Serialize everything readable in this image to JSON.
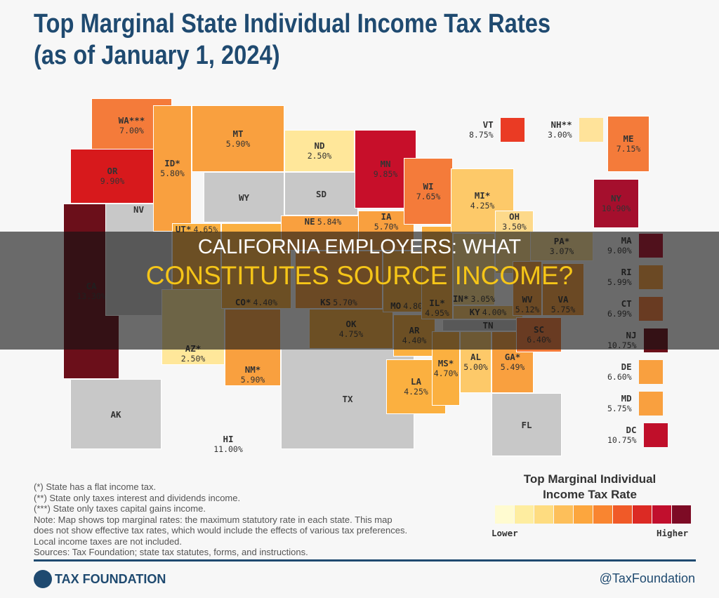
{
  "title": {
    "line1": "Top Marginal State Individual Income Tax Rates",
    "line2": "(as of January 1, 2024)"
  },
  "states": [
    {
      "abbr": "WA***",
      "rate": "7.00%",
      "color": "#f47b3a"
    },
    {
      "abbr": "OR",
      "rate": "9.90%",
      "color": "#d7191c"
    },
    {
      "abbr": "CA",
      "rate": "13.30%",
      "color": "#6b0f1a"
    },
    {
      "abbr": "NV",
      "rate": "",
      "color": "#c8c8c8"
    },
    {
      "abbr": "ID*",
      "rate": "5.80%",
      "color": "#f9a03f"
    },
    {
      "abbr": "MT",
      "rate": "5.90%",
      "color": "#f9a03f"
    },
    {
      "abbr": "WY",
      "rate": "",
      "color": "#c8c8c8"
    },
    {
      "abbr": "UT*",
      "rate": "4.65%",
      "color": "#fbb040"
    },
    {
      "abbr": "AZ*",
      "rate": "2.50%",
      "color": "#ffe79a"
    },
    {
      "abbr": "CO*",
      "rate": "4.40%",
      "color": "#fbb040"
    },
    {
      "abbr": "NM*",
      "rate": "5.90%",
      "color": "#f9a03f"
    },
    {
      "abbr": "ND",
      "rate": "2.50%",
      "color": "#ffe79a"
    },
    {
      "abbr": "SD",
      "rate": "",
      "color": "#c8c8c8"
    },
    {
      "abbr": "NE",
      "rate": "5.84%",
      "color": "#f9a03f"
    },
    {
      "abbr": "KS",
      "rate": "5.70%",
      "color": "#f9a03f"
    },
    {
      "abbr": "OK",
      "rate": "4.75%",
      "color": "#fbb040"
    },
    {
      "abbr": "TX",
      "rate": "",
      "color": "#c8c8c8"
    },
    {
      "abbr": "MN",
      "rate": "9.85%",
      "color": "#c70f2a"
    },
    {
      "abbr": "IA",
      "rate": "5.70%",
      "color": "#f9a03f"
    },
    {
      "abbr": "MO",
      "rate": "4.80%",
      "color": "#fbb040"
    },
    {
      "abbr": "AR",
      "rate": "4.40%",
      "color": "#fbb040"
    },
    {
      "abbr": "LA",
      "rate": "4.25%",
      "color": "#fbb040"
    },
    {
      "abbr": "WI",
      "rate": "7.65%",
      "color": "#f47b3a"
    },
    {
      "abbr": "IL*",
      "rate": "4.95%",
      "color": "#fbb040"
    },
    {
      "abbr": "MI*",
      "rate": "4.25%",
      "color": "#fdc969"
    },
    {
      "abbr": "IN*",
      "rate": "3.05%",
      "color": "#fdd98a"
    },
    {
      "abbr": "OH",
      "rate": "3.50%",
      "color": "#fdd98a"
    },
    {
      "abbr": "KY",
      "rate": "4.00%",
      "color": "#fdc969"
    },
    {
      "abbr": "TN",
      "rate": "",
      "color": "#c8c8c8"
    },
    {
      "abbr": "MS*",
      "rate": "4.70%",
      "color": "#fbb040"
    },
    {
      "abbr": "AL",
      "rate": "5.00%",
      "color": "#fdc969"
    },
    {
      "abbr": "GA*",
      "rate": "5.49%",
      "color": "#f9a03f"
    },
    {
      "abbr": "FL",
      "rate": "",
      "color": "#c8c8c8"
    },
    {
      "abbr": "SC",
      "rate": "6.40%",
      "color": "#f47b3a"
    },
    {
      "abbr": "WV",
      "rate": "5.12%",
      "color": "#f9a03f"
    },
    {
      "abbr": "VA",
      "rate": "5.75%",
      "color": "#f9a03f"
    },
    {
      "abbr": "PA*",
      "rate": "3.07%",
      "color": "#ffe39a"
    },
    {
      "abbr": "NY",
      "rate": "10.90%",
      "color": "#a50f2d"
    },
    {
      "abbr": "ME",
      "rate": "7.15%",
      "color": "#f47b3a"
    },
    {
      "abbr": "AK",
      "rate": "",
      "color": "#c8c8c8"
    },
    {
      "abbr": "HI",
      "rate": "11.00%",
      "color": "#a50f2d"
    }
  ],
  "swatches_top": [
    {
      "abbr": "VT",
      "rate": "8.75%",
      "color": "#ea3b24"
    },
    {
      "abbr": "NH**",
      "rate": "3.00%",
      "color": "#ffe39a"
    }
  ],
  "swatches_right": [
    {
      "abbr": "MA",
      "rate": "9.00%",
      "color": "#b30f2a"
    },
    {
      "abbr": "RI",
      "rate": "5.99%",
      "color": "#f9a03f"
    },
    {
      "abbr": "CT",
      "rate": "6.99%",
      "color": "#f47b3a"
    },
    {
      "abbr": "NJ",
      "rate": "10.75%",
      "color": "#6b0f1a"
    },
    {
      "abbr": "DE",
      "rate": "6.60%",
      "color": "#f9a03f"
    },
    {
      "abbr": "MD",
      "rate": "5.75%",
      "color": "#f9a03f"
    },
    {
      "abbr": "DC",
      "rate": "10.75%",
      "color": "#c00f2a"
    }
  ],
  "notes": [
    "(*) State has a flat income tax.",
    "(**) State only taxes interest and dividends income.",
    "(***) State only taxes capital gains income.",
    "Note: Map shows top marginal rates: the maximum statutory rate in each state. This map",
    "does not show effective tax rates, which would include the effects of various tax preferences.",
    "Local income taxes are not included.",
    "Sources: Tax Foundation; state tax statutes, forms, and instructions."
  ],
  "legend": {
    "title_line1": "Top Marginal Individual",
    "title_line2": "Income Tax Rate",
    "low": "Lower",
    "high": "Higher",
    "colors": [
      "#fffbd0",
      "#feeda0",
      "#fedc80",
      "#fdbf5a",
      "#fca63e",
      "#f98530",
      "#f05a28",
      "#dc2a24",
      "#c10f2d",
      "#7d0b25"
    ]
  },
  "footer": {
    "brand": "TAX FOUNDATION",
    "handle": "@TaxFoundation"
  },
  "overlay": {
    "line1": "CALIFORNIA EMPLOYERS: WHAT",
    "line2": "CONSTITUTES SOURCE INCOME?"
  }
}
